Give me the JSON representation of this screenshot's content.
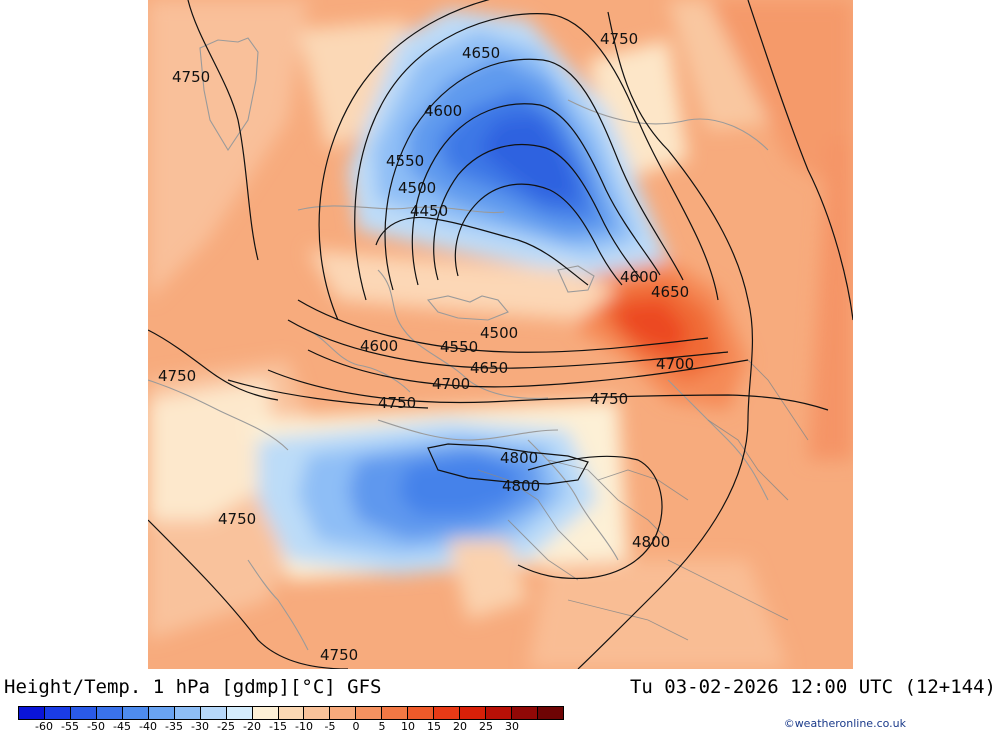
{
  "title": {
    "left": "Height/Temp. 1 hPa [gdmp][°C] GFS",
    "right": "Tu 03-02-2026 12:00 UTC (12+144)"
  },
  "credit": "©weatheronline.co.uk",
  "colorbar": {
    "colors": [
      "#0a14d8",
      "#1a3ce6",
      "#2a5ae8",
      "#3a72ea",
      "#4e8cee",
      "#6aa4f2",
      "#8ebef6",
      "#b6d8fa",
      "#d4ecfc",
      "#fdf0d6",
      "#fbd8b4",
      "#f9c29a",
      "#f7aa7c",
      "#f59260",
      "#f27844",
      "#ee5a2a",
      "#e83a16",
      "#d82008",
      "#b81006",
      "#900806",
      "#6e0404"
    ],
    "labels": [
      "-60",
      "-55",
      "-50",
      "-45",
      "-40",
      "-35",
      "-30",
      "-25",
      "-20",
      "-15",
      "-10",
      "-5",
      "0",
      "5",
      "10",
      "15",
      "20",
      "25",
      "30"
    ]
  },
  "contour_labels": [
    {
      "text": "4750",
      "name": "contour-label-4750-nw"
    },
    {
      "text": "4750",
      "name": "contour-label-4750-ne"
    },
    {
      "text": "4650",
      "name": "contour-label-4650-top"
    },
    {
      "text": "4600",
      "name": "contour-label-4600-top"
    },
    {
      "text": "4550",
      "name": "contour-label-4550-top"
    },
    {
      "text": "4500",
      "name": "contour-label-4500-top"
    },
    {
      "text": "4450",
      "name": "contour-label-4450"
    },
    {
      "text": "4600",
      "name": "contour-label-4600-east"
    },
    {
      "text": "4650",
      "name": "contour-label-4650-east"
    },
    {
      "text": "4500",
      "name": "contour-label-4500-south"
    },
    {
      "text": "4600",
      "name": "contour-label-4600-sw"
    },
    {
      "text": "4550",
      "name": "contour-label-4550-south"
    },
    {
      "text": "4650",
      "name": "contour-label-4650-south"
    },
    {
      "text": "4700",
      "name": "contour-label-4700-east"
    },
    {
      "text": "4700",
      "name": "contour-label-4700-south"
    },
    {
      "text": "4750",
      "name": "contour-label-4750-w"
    },
    {
      "text": "4750",
      "name": "contour-label-4750-mid"
    },
    {
      "text": "4750",
      "name": "contour-label-4750-midright"
    },
    {
      "text": "4800",
      "name": "contour-label-4800-a"
    },
    {
      "text": "4800",
      "name": "contour-label-4800-b"
    },
    {
      "text": "4800",
      "name": "contour-label-4800-c"
    },
    {
      "text": "4750",
      "name": "contour-label-4750-sw"
    },
    {
      "text": "4750",
      "name": "contour-label-4750-bottom"
    }
  ]
}
